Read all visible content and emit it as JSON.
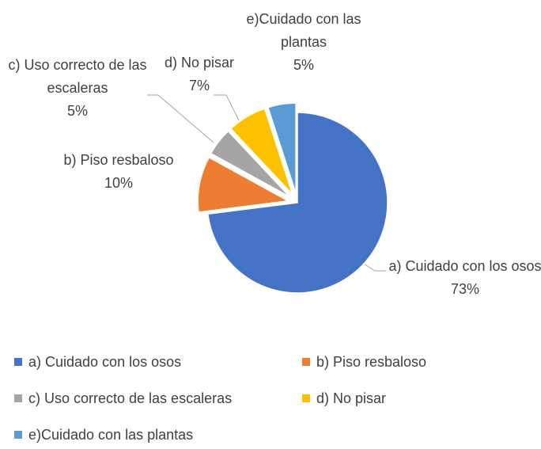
{
  "chart_data": {
    "type": "pie",
    "categories": [
      "a) Cuidado con los osos",
      "b) Piso resbaloso",
      "c) Uso correcto de las escaleras",
      "d) No pisar",
      "e)Cuidado con las plantas"
    ],
    "values": [
      73,
      10,
      5,
      7,
      5
    ],
    "value_labels": [
      "73%",
      "10%",
      "5%",
      "7%",
      "5%"
    ],
    "colors": [
      "#4472c4",
      "#ed7d31",
      "#a5a5a5",
      "#ffc000",
      "#5b9bd5"
    ],
    "legend": "bottom"
  }
}
